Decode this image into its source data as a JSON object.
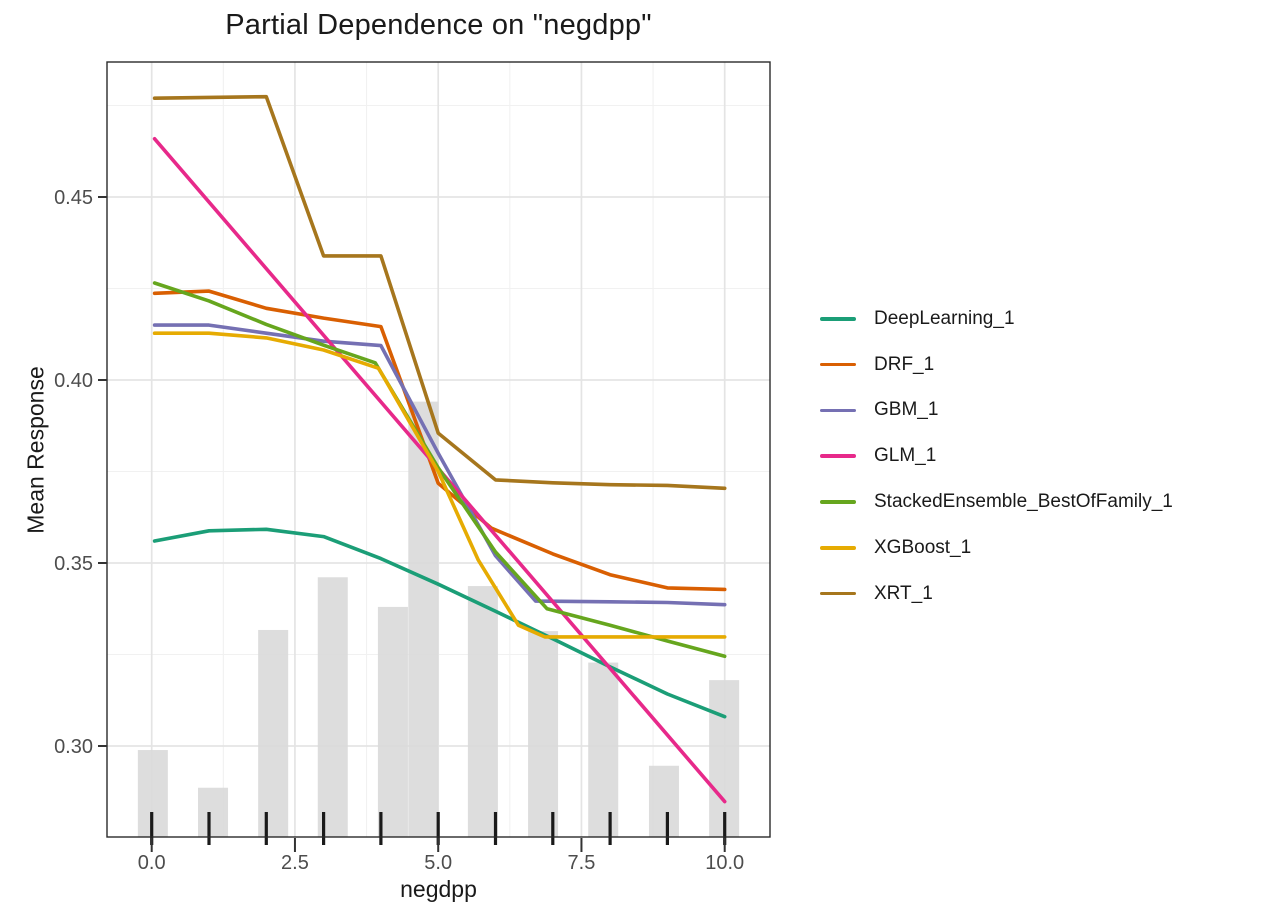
{
  "chart_data": {
    "type": "line",
    "title": "Partial Dependence on \"negdpp\"",
    "xlabel": "negdpp",
    "ylabel": "Mean Response",
    "xlim": [
      -0.78,
      10.79
    ],
    "ylim": [
      0.275,
      0.487
    ],
    "x_major_ticks": [
      0,
      2.5,
      5,
      7.5,
      10
    ],
    "x_tick_labels": [
      "0.0",
      "2.5",
      "5.0",
      "7.5",
      "10.0"
    ],
    "x_minor_gridlines": [
      1.25,
      3.75,
      6.25,
      8.75
    ],
    "y_major_ticks": [
      0.3,
      0.35,
      0.4,
      0.45
    ],
    "y_tick_labels": [
      "0.30",
      "0.35",
      "0.40",
      "0.45"
    ],
    "y_minor_gridlines": [
      0.325,
      0.375,
      0.425,
      0.475
    ],
    "grid": true,
    "legend_position": "right",
    "series": [
      {
        "name": "DeepLearning_1",
        "color": "#1B9E77",
        "points": [
          [
            0.05,
            0.356
          ],
          [
            1,
            0.3588
          ],
          [
            2,
            0.3592
          ],
          [
            3,
            0.3572
          ],
          [
            4,
            0.3512
          ],
          [
            5,
            0.3442
          ],
          [
            6,
            0.3368
          ],
          [
            7,
            0.3293
          ],
          [
            8,
            0.3216
          ],
          [
            9,
            0.3142
          ],
          [
            10,
            0.308
          ]
        ]
      },
      {
        "name": "DRF_1",
        "color": "#D95F02",
        "points": [
          [
            0.05,
            0.4237
          ],
          [
            1,
            0.4243
          ],
          [
            2,
            0.4196
          ],
          [
            3,
            0.4169
          ],
          [
            4,
            0.4146
          ],
          [
            5,
            0.3718
          ],
          [
            5.93,
            0.3595
          ],
          [
            7,
            0.3525
          ],
          [
            8,
            0.3468
          ],
          [
            9,
            0.3432
          ],
          [
            10,
            0.3428
          ]
        ]
      },
      {
        "name": "GBM_1",
        "color": "#7570B3",
        "points": [
          [
            0.05,
            0.415
          ],
          [
            1,
            0.415
          ],
          [
            2,
            0.4128
          ],
          [
            3,
            0.4106
          ],
          [
            4,
            0.4094
          ],
          [
            5,
            0.38
          ],
          [
            6,
            0.352
          ],
          [
            6.7,
            0.3396
          ],
          [
            8,
            0.3394
          ],
          [
            9,
            0.3392
          ],
          [
            10,
            0.3386
          ]
        ]
      },
      {
        "name": "GLM_1",
        "color": "#E7298A",
        "points": [
          [
            0.05,
            0.4659
          ],
          [
            10,
            0.2848
          ]
        ]
      },
      {
        "name": "StackedEnsemble_BestOfFamily_1",
        "color": "#66A61E",
        "points": [
          [
            0.05,
            0.4265
          ],
          [
            1,
            0.4216
          ],
          [
            2,
            0.4152
          ],
          [
            3,
            0.4095
          ],
          [
            3.9,
            0.4047
          ],
          [
            5,
            0.376
          ],
          [
            6,
            0.353
          ],
          [
            6.9,
            0.3375
          ],
          [
            8,
            0.333
          ],
          [
            9,
            0.3287
          ],
          [
            10,
            0.3245
          ]
        ]
      },
      {
        "name": "XGBoost_1",
        "color": "#E6AB02",
        "points": [
          [
            0.05,
            0.4128
          ],
          [
            1,
            0.4128
          ],
          [
            2,
            0.4115
          ],
          [
            3,
            0.4082
          ],
          [
            3.96,
            0.4032
          ],
          [
            5,
            0.375
          ],
          [
            5.7,
            0.3508
          ],
          [
            6.4,
            0.333
          ],
          [
            6.86,
            0.3298
          ],
          [
            9,
            0.3298
          ],
          [
            10,
            0.3298
          ]
        ]
      },
      {
        "name": "XRT_1",
        "color": "#A6761D",
        "points": [
          [
            0.05,
            0.477
          ],
          [
            1,
            0.4772
          ],
          [
            2,
            0.4774
          ],
          [
            3,
            0.4339
          ],
          [
            4,
            0.4339
          ],
          [
            5,
            0.3855
          ],
          [
            6,
            0.3727
          ],
          [
            7,
            0.3719
          ],
          [
            8,
            0.3714
          ],
          [
            9,
            0.3712
          ],
          [
            10,
            0.3704
          ]
        ]
      }
    ],
    "histogram": {
      "bar_width": 0.5236,
      "bars": [
        {
          "x": 0.02,
          "top": 0.2989
        },
        {
          "x": 1.07,
          "top": 0.2886
        },
        {
          "x": 2.12,
          "top": 0.3317
        },
        {
          "x": 3.16,
          "top": 0.3461
        },
        {
          "x": 4.21,
          "top": 0.338
        },
        {
          "x": 4.74,
          "top": 0.3941
        },
        {
          "x": 5.78,
          "top": 0.3437
        },
        {
          "x": 6.83,
          "top": 0.3314
        },
        {
          "x": 7.88,
          "top": 0.3228
        },
        {
          "x": 8.94,
          "top": 0.2946
        },
        {
          "x": 9.99,
          "top": 0.318
        }
      ]
    },
    "rug_x": [
      0,
      1,
      2,
      3,
      4,
      5,
      6,
      7,
      8,
      9,
      10
    ]
  },
  "style": {
    "background": "#ffffff",
    "grid_major": "#e4e4e4",
    "grid_minor": "#f1f1f1",
    "histogram_fill": "#d9d9d9",
    "rug_color": "#1a1a1a",
    "panel_border": "#2a2a2a",
    "tick_color": "#333333",
    "tick_label_color": "#4d4d4d",
    "text_color": "#1a1a1a"
  }
}
